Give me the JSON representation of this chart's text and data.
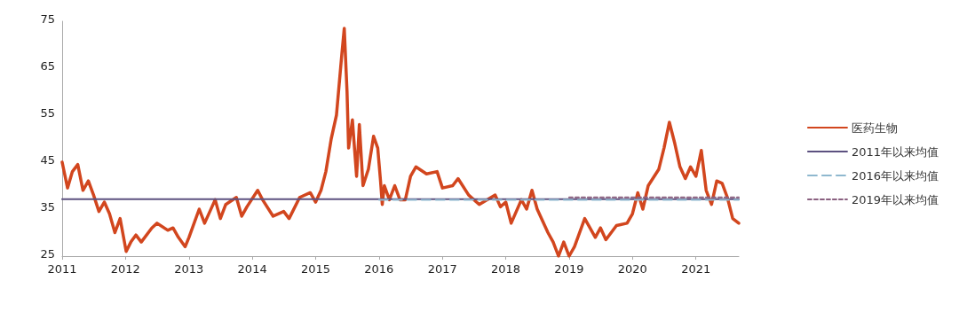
{
  "chart_data": {
    "type": "line",
    "xlim": [
      "2011-01-01",
      "2021-09-05"
    ],
    "xticks": [
      "2011",
      "2012",
      "2013",
      "2014",
      "2015",
      "2016",
      "2017",
      "2018",
      "2019",
      "2020",
      "2021"
    ],
    "ylim": [
      25,
      75
    ],
    "yticks": [
      25,
      35,
      45,
      55,
      65,
      75
    ],
    "grid": false,
    "legend": "right",
    "marker": "none",
    "series": [
      {
        "name": "医药生物",
        "color": "#d2461e",
        "line_style": "solid",
        "x": [
          "2011-01-01",
          "2011-02-01",
          "2011-03-01",
          "2011-04-01",
          "2011-05-01",
          "2011-06-01",
          "2011-07-01",
          "2011-08-01",
          "2011-09-01",
          "2011-10-01",
          "2011-11-01",
          "2011-12-01",
          "2012-01-05",
          "2012-02-01",
          "2012-03-01",
          "2012-04-01",
          "2012-06-01",
          "2012-07-01",
          "2012-09-01",
          "2012-10-01",
          "2012-11-01",
          "2012-12-10",
          "2013-01-01",
          "2013-03-01",
          "2013-04-01",
          "2013-06-01",
          "2013-07-01",
          "2013-08-01",
          "2013-10-01",
          "2013-11-01",
          "2013-12-01",
          "2014-02-01",
          "2014-03-01",
          "2014-05-01",
          "2014-07-01",
          "2014-08-01",
          "2014-10-01",
          "2014-12-01",
          "2015-01-01",
          "2015-02-01",
          "2015-03-01",
          "2015-04-01",
          "2015-05-01",
          "2015-06-01",
          "2015-06-15",
          "2015-07-01",
          "2015-07-10",
          "2015-08-01",
          "2015-08-25",
          "2015-09-10",
          "2015-10-01",
          "2015-11-01",
          "2015-12-01",
          "2015-12-25",
          "2016-01-10",
          "2016-01-20",
          "2016-02-01",
          "2016-03-01",
          "2016-04-01",
          "2016-05-01",
          "2016-06-01",
          "2016-07-01",
          "2016-08-01",
          "2016-10-01",
          "2016-12-01",
          "2017-01-01",
          "2017-03-01",
          "2017-04-01",
          "2017-06-01",
          "2017-08-01",
          "2017-11-01",
          "2017-12-01",
          "2018-01-01",
          "2018-02-01",
          "2018-04-01",
          "2018-05-01",
          "2018-06-01",
          "2018-07-01",
          "2018-09-01",
          "2018-10-01",
          "2018-11-01",
          "2018-12-01",
          "2019-01-01",
          "2019-02-01",
          "2019-04-01",
          "2019-06-01",
          "2019-07-01",
          "2019-08-01",
          "2019-10-01",
          "2019-12-01",
          "2020-01-01",
          "2020-02-01",
          "2020-03-01",
          "2020-04-01",
          "2020-06-01",
          "2020-07-01",
          "2020-08-01",
          "2020-09-01",
          "2020-10-01",
          "2020-11-01",
          "2020-12-01",
          "2021-01-01",
          "2021-02-01",
          "2021-03-01",
          "2021-04-01",
          "2021-05-01",
          "2021-06-01",
          "2021-07-01",
          "2021-08-01",
          "2021-09-05"
        ],
        "values": [
          45,
          39.5,
          43,
          44.5,
          39,
          41,
          38,
          34.5,
          36.5,
          34,
          30,
          33,
          26,
          28,
          29.5,
          28,
          31,
          32,
          30.5,
          31,
          29,
          27,
          29,
          35,
          32,
          37,
          33,
          36,
          37.5,
          33.5,
          35.5,
          39,
          37,
          33.5,
          34.5,
          33,
          37.5,
          38.5,
          36.5,
          39,
          43,
          50,
          55,
          68,
          73.5,
          60,
          48,
          54,
          42,
          53,
          40,
          43.5,
          50.5,
          48,
          41,
          36,
          40,
          37,
          40,
          37,
          37,
          42,
          44,
          42.5,
          43,
          39.5,
          40,
          41.5,
          38,
          36,
          38,
          35.5,
          36.5,
          32,
          37,
          35,
          39,
          35,
          30,
          28,
          25,
          28,
          25,
          27,
          33,
          29,
          31,
          28.5,
          31.5,
          32,
          34,
          38.5,
          35,
          40,
          43.5,
          48,
          53.5,
          49,
          44,
          41.5,
          44,
          42,
          47.5,
          39,
          36,
          41,
          40.5,
          37.5,
          33,
          32
        ]
      },
      {
        "name": "2011年以来均值",
        "color": "#5c5180",
        "line_style": "solid",
        "x": [
          "2011-01-01",
          "2021-09-05"
        ],
        "values": [
          37.1,
          37.1
        ]
      },
      {
        "name": "2016年以来均值",
        "color": "#8fb8cf",
        "line_style": "dashed",
        "x": [
          "2016-01-01",
          "2021-09-05"
        ],
        "values": [
          37,
          37
        ]
      },
      {
        "name": "2019年以来均值",
        "color": "#8a6080",
        "line_style": "dotted",
        "x": [
          "2019-01-01",
          "2021-09-05"
        ],
        "values": [
          37.5,
          37.5
        ]
      }
    ]
  }
}
